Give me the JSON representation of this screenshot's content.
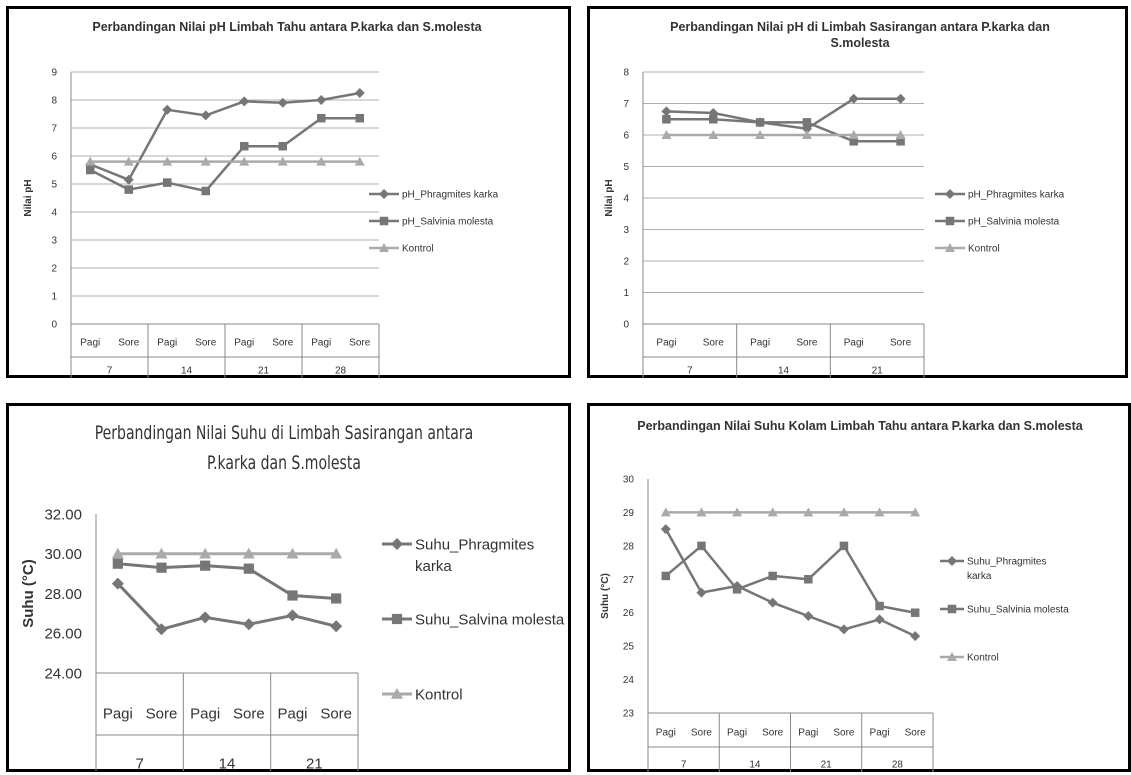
{
  "colors": {
    "series1": "#767676",
    "series2": "#767676",
    "control": "#aaaaaa",
    "grid": "#b0b0b0",
    "axis": "#888888",
    "text": "#333333"
  },
  "chart_data": [
    {
      "type": "line",
      "title": "Perbandingan Nilai pH Limbah Tahu antara P.karka dan S.molesta",
      "ylabel": "Nilai pH",
      "xlabel": "",
      "ylim": [
        0,
        9
      ],
      "yticks": [
        "0",
        "1",
        "2",
        "3",
        "4",
        "5",
        "6",
        "7",
        "8",
        "9"
      ],
      "categories": [
        "Pagi",
        "Sore",
        "Pagi",
        "Sore",
        "Pagi",
        "Sore",
        "Pagi",
        "Sore"
      ],
      "groups": [
        "7",
        "14",
        "21",
        "28"
      ],
      "series": [
        {
          "name": "pH_Phragmites karka",
          "marker": "diamond",
          "values": [
            5.7,
            5.15,
            7.65,
            7.45,
            7.95,
            7.9,
            8.0,
            8.25
          ]
        },
        {
          "name": "pH_Salvinia molesta",
          "marker": "square",
          "values": [
            5.5,
            4.8,
            5.05,
            4.75,
            6.35,
            6.35,
            7.35,
            7.35
          ]
        },
        {
          "name": "Kontrol",
          "marker": "triangle",
          "values": [
            5.8,
            5.8,
            5.8,
            5.8,
            5.8,
            5.8,
            5.8,
            5.8
          ]
        }
      ],
      "legend": "right",
      "grid": true
    },
    {
      "type": "line",
      "title": "Perbandingan Nilai pH di Limbah Sasirangan antara P.karka dan S.molesta",
      "ylabel": "Nilai pH",
      "xlabel": "",
      "ylim": [
        0,
        8
      ],
      "yticks": [
        "0",
        "1",
        "2",
        "3",
        "4",
        "5",
        "6",
        "7",
        "8"
      ],
      "categories": [
        "Pagi",
        "Sore",
        "Pagi",
        "Sore",
        "Pagi",
        "Sore"
      ],
      "groups": [
        "7",
        "14",
        "21"
      ],
      "series": [
        {
          "name": "pH_Phragmites karka",
          "marker": "diamond",
          "values": [
            6.75,
            6.7,
            6.4,
            6.2,
            7.15,
            7.15
          ]
        },
        {
          "name": "pH_Salvinia molesta",
          "marker": "square",
          "values": [
            6.5,
            6.5,
            6.4,
            6.4,
            5.8,
            5.8
          ]
        },
        {
          "name": "Kontrol",
          "marker": "triangle",
          "values": [
            6.0,
            6.0,
            6.0,
            6.0,
            6.0,
            6.0
          ]
        }
      ],
      "legend": "right",
      "grid": true
    },
    {
      "type": "line",
      "title": "Perbandingan Nilai Suhu di Limbah Sasirangan antara P.karka dan S.molesta",
      "ylabel": "Suhu (°C)",
      "xlabel": "",
      "ylim": [
        24,
        32
      ],
      "yticks": [
        "24.00",
        "26.00",
        "28.00",
        "30.00",
        "32.00"
      ],
      "categories": [
        "Pagi",
        "Sore",
        "Pagi",
        "Sore",
        "Pagi",
        "Sore"
      ],
      "groups": [
        "7",
        "14",
        "21"
      ],
      "series": [
        {
          "name": "Suhu_Phragmites karka",
          "marker": "diamond",
          "values": [
            28.5,
            26.2,
            26.8,
            26.45,
            26.9,
            26.35
          ]
        },
        {
          "name": "Suhu_Salvina molesta",
          "marker": "square",
          "values": [
            29.5,
            29.3,
            29.4,
            29.25,
            27.9,
            27.75
          ]
        },
        {
          "name": "Kontrol",
          "marker": "triangle",
          "values": [
            30.0,
            30.0,
            30.0,
            30.0,
            30.0,
            30.0
          ]
        }
      ],
      "legend": "right",
      "grid": false
    },
    {
      "type": "line",
      "title": "Perbandingan Nilai  Suhu  Kolam Limbah Tahu antara P.karka dan S.molesta",
      "ylabel": "Suhu (°C)",
      "xlabel": "",
      "ylim": [
        23,
        30
      ],
      "yticks": [
        "23",
        "24",
        "25",
        "26",
        "27",
        "28",
        "29",
        "30"
      ],
      "categories": [
        "Pagi",
        "Sore",
        "Pagi",
        "Sore",
        "Pagi",
        "Sore",
        "Pagi",
        "Sore"
      ],
      "groups": [
        "7",
        "14",
        "21",
        "28"
      ],
      "series": [
        {
          "name": "Suhu_Phragmites karka",
          "marker": "diamond",
          "values": [
            28.5,
            26.6,
            26.8,
            26.3,
            25.9,
            25.5,
            25.8,
            25.3
          ]
        },
        {
          "name": "Suhu_Salvinia molesta",
          "marker": "square",
          "values": [
            27.1,
            28.0,
            26.7,
            27.1,
            27.0,
            28.0,
            26.2,
            26.0
          ]
        },
        {
          "name": "Kontrol",
          "marker": "triangle",
          "values": [
            29.0,
            29.0,
            29.0,
            29.0,
            29.0,
            29.0,
            29.0,
            29.0
          ]
        }
      ],
      "legend": "right",
      "grid": false
    }
  ]
}
